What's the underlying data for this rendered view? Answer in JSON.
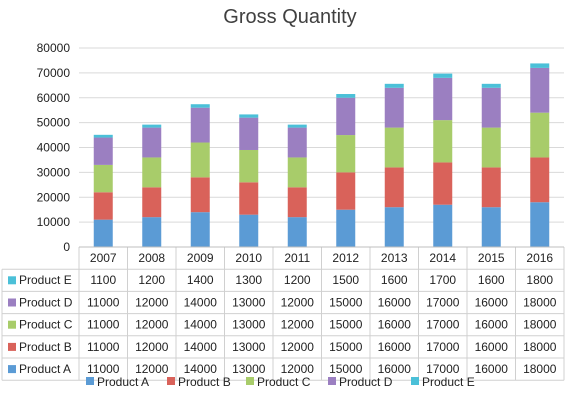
{
  "chart_data": {
    "type": "bar",
    "stacked": true,
    "title": "Gross Quantity",
    "categories": [
      "2007",
      "2008",
      "2009",
      "2010",
      "2011",
      "2012",
      "2013",
      "2014",
      "2015",
      "2016"
    ],
    "ylim": [
      0,
      80000
    ],
    "yticks": [
      0,
      10000,
      20000,
      30000,
      40000,
      50000,
      60000,
      70000,
      80000
    ],
    "grid": true,
    "legend_position": "bottom",
    "series": [
      {
        "name": "Product A",
        "color": "#5b9bd5",
        "values": [
          11000,
          12000,
          14000,
          13000,
          12000,
          15000,
          16000,
          17000,
          16000,
          18000
        ]
      },
      {
        "name": "Product B",
        "color": "#d9625a",
        "values": [
          11000,
          12000,
          14000,
          13000,
          12000,
          15000,
          16000,
          17000,
          16000,
          18000
        ]
      },
      {
        "name": "Product C",
        "color": "#a8cc6a",
        "values": [
          11000,
          12000,
          14000,
          13000,
          12000,
          15000,
          16000,
          17000,
          16000,
          18000
        ]
      },
      {
        "name": "Product D",
        "color": "#9b7fc1",
        "values": [
          11000,
          12000,
          14000,
          13000,
          12000,
          15000,
          16000,
          17000,
          16000,
          18000
        ]
      },
      {
        "name": "Product E",
        "color": "#4bc0d8",
        "values": [
          1100,
          1200,
          1400,
          1300,
          1200,
          1500,
          1600,
          1700,
          1600,
          1800
        ]
      }
    ]
  }
}
